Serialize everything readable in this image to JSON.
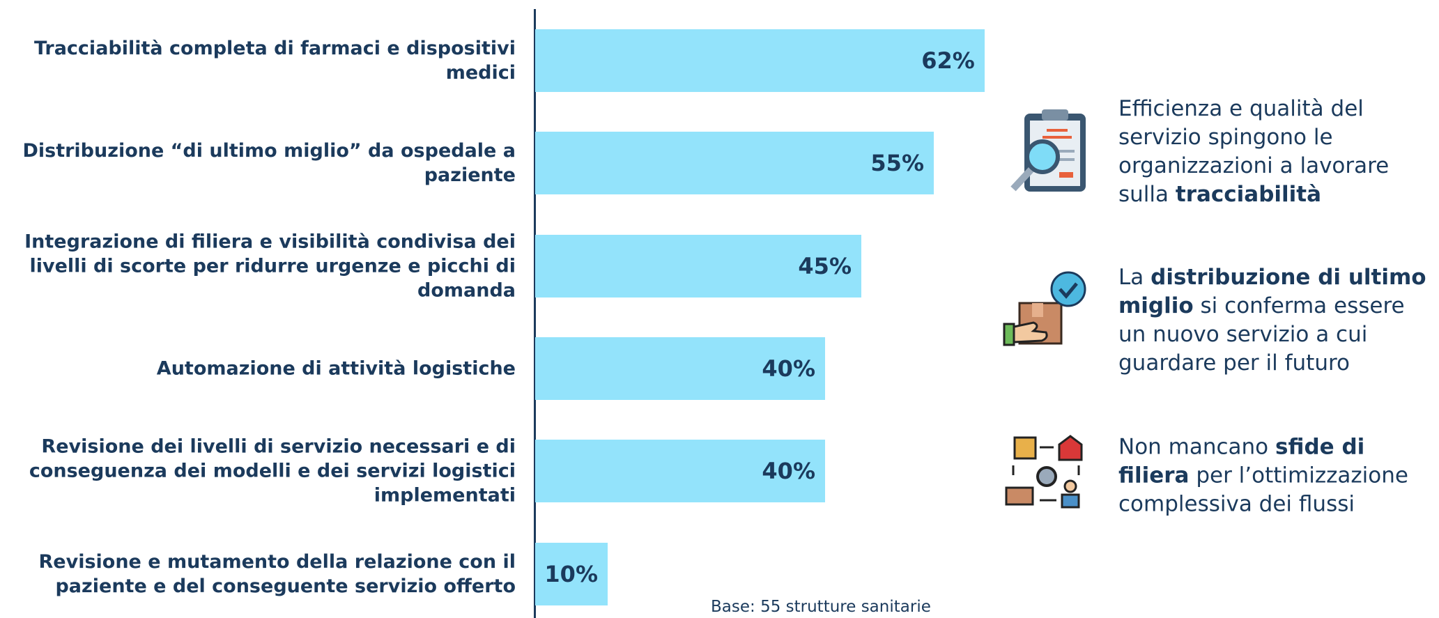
{
  "chart_data": {
    "type": "bar",
    "orientation": "horizontal",
    "color": "#93e3fb",
    "categories": [
      "Tracciabilità completa di farmaci e dispositivi medici",
      "Distribuzione “di ultimo miglio” da ospedale a paziente",
      "Integrazione di filiera e visibilità condivisa dei livelli di scorte per ridurre urgenze e picchi di domanda",
      "Automazione di attività logistiche",
      "Revisione dei livelli di servizio necessari e di conseguenza dei modelli e dei servizi logistici implementati",
      "Revisione e mutamento della relazione con il paziente e del conseguente servizio offerto"
    ],
    "values": [
      62,
      55,
      45,
      40,
      40,
      10
    ],
    "value_labels": [
      "62%",
      "55%",
      "45%",
      "40%",
      "40%",
      "10%"
    ],
    "note": "Base: 55 strutture sanitarie"
  },
  "insights": [
    {
      "parts": [
        {
          "text": "Efficienza e qualità del servizio spingono le organizzazioni a lavorare sulla ",
          "bold": false
        },
        {
          "text": "tracciabilità",
          "bold": true
        }
      ]
    },
    {
      "parts": [
        {
          "text": "La ",
          "bold": false
        },
        {
          "text": "distribuzione di ultimo miglio",
          "bold": true
        },
        {
          "text": " si conferma essere un nuovo servizio a cui guardare per il futuro",
          "bold": false
        }
      ]
    },
    {
      "parts": [
        {
          "text": "Non mancano ",
          "bold": false
        },
        {
          "text": "sfide di filiera",
          "bold": true
        },
        {
          "text": " per l’ottimizzazione complessiva dei flussi",
          "bold": false
        }
      ]
    }
  ]
}
